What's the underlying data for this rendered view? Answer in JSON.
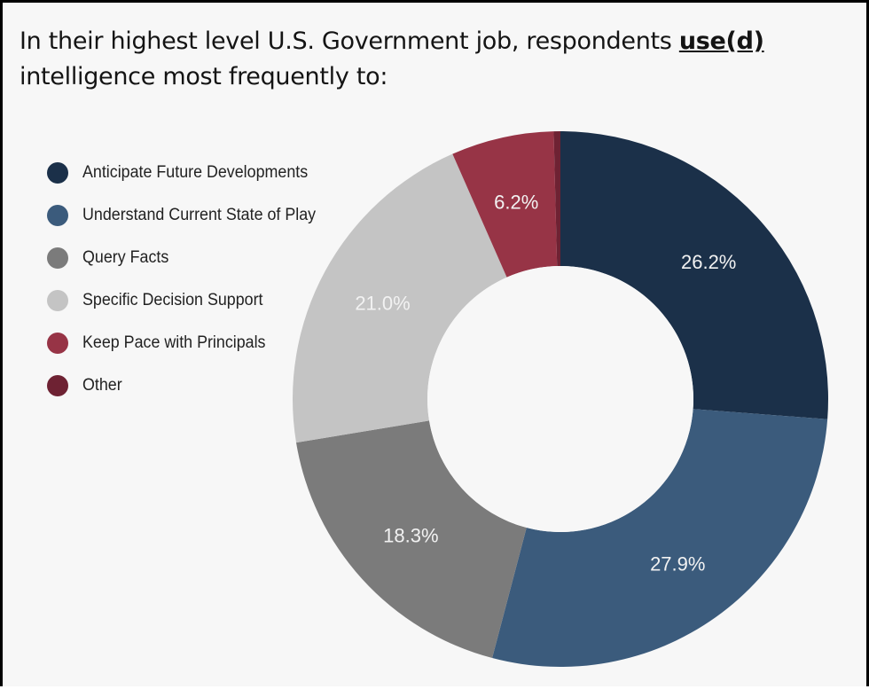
{
  "title": {
    "text_before": "In their highest level U.S. Government job, respondents ",
    "emphasis": "use(d)",
    "text_after": " intelligence most frequently to:"
  },
  "chart_data": {
    "type": "pie",
    "subtype": "donut",
    "title": "In their highest level U.S. Government job, respondents use(d) intelligence most frequently to:",
    "start_angle": "top (12 o'clock)",
    "direction": "clockwise",
    "legend_position": "top-left",
    "categories": [
      "Anticipate Future Developments",
      "Understand Current State of Play",
      "Query Facts",
      "Specific Decision Support",
      "Keep Pace with Principals",
      "Other"
    ],
    "values": [
      26.2,
      27.9,
      18.3,
      21.0,
      6.2,
      0.4
    ],
    "labels": [
      "26.2%",
      "27.9%",
      "18.3%",
      "21.0%",
      "6.2%",
      ""
    ],
    "colors": [
      "#1b3049",
      "#3b5b7c",
      "#7b7b7b",
      "#c4c4c4",
      "#973446",
      "#6e2233"
    ],
    "unit": "%"
  }
}
